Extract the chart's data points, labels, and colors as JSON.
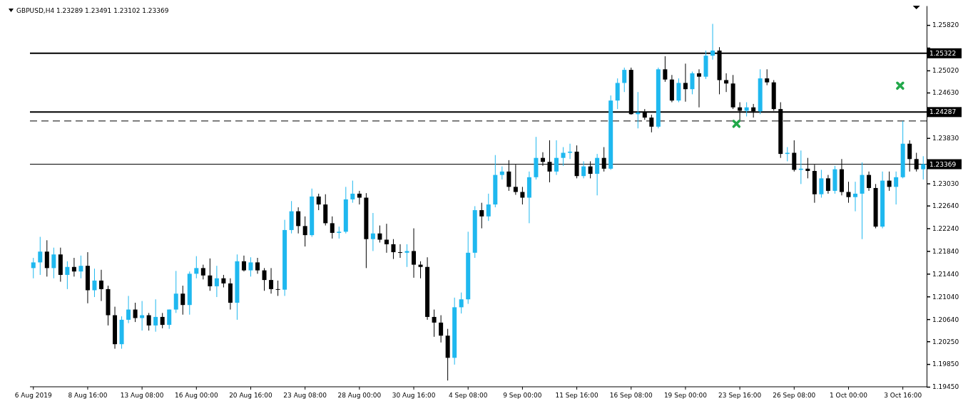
{
  "chart_data": {
    "type": "candlestick",
    "title": "GBPUSD,H4 1.23289 1.23491 1.23102 1.23369",
    "categories": [
      "6 Aug 2019",
      null,
      null,
      null,
      null,
      null,
      null,
      null,
      "8 Aug 16:00",
      null,
      null,
      null,
      null,
      null,
      null,
      null,
      "13 Aug 08:00",
      null,
      null,
      null,
      null,
      null,
      null,
      null,
      "16 Aug 00:00",
      null,
      null,
      null,
      null,
      null,
      null,
      null,
      "20 Aug 16:00",
      null,
      null,
      null,
      null,
      null,
      null,
      null,
      "23 Aug 08:00",
      null,
      null,
      null,
      null,
      null,
      null,
      null,
      "28 Aug 00:00",
      null,
      null,
      null,
      null,
      null,
      null,
      null,
      "30 Aug 16:00",
      null,
      null,
      null,
      null,
      null,
      null,
      null,
      "4 Sep 08:00",
      null,
      null,
      null,
      null,
      null,
      null,
      null,
      "9 Sep 00:00",
      null,
      null,
      null,
      null,
      null,
      null,
      null,
      "11 Sep 16:00",
      null,
      null,
      null,
      null,
      null,
      null,
      null,
      "16 Sep 08:00",
      null,
      null,
      null,
      null,
      null,
      null,
      null,
      "19 Sep 00:00",
      null,
      null,
      null,
      null,
      null,
      null,
      null,
      "23 Sep 16:00",
      null,
      null,
      null,
      null,
      null,
      null,
      null,
      "26 Sep 08:00",
      null,
      null,
      null,
      null,
      null,
      null,
      null,
      "1 Oct 00:00",
      null,
      null,
      null,
      null,
      null,
      null,
      null,
      "3 Oct 16:00",
      null,
      null,
      null
    ],
    "ohlc": [
      [
        1.2154,
        1.2172,
        1.2136,
        1.2164
      ],
      [
        1.2164,
        1.2209,
        1.2142,
        1.2183
      ],
      [
        1.2183,
        1.2203,
        1.2139,
        1.2154
      ],
      [
        1.2154,
        1.219,
        1.2136,
        1.2178
      ],
      [
        1.2178,
        1.219,
        1.213,
        1.2142
      ],
      [
        1.2142,
        1.2166,
        1.2117,
        1.2156
      ],
      [
        1.2156,
        1.2172,
        1.2139,
        1.2148
      ],
      [
        1.2148,
        1.2176,
        1.2136,
        1.2158
      ],
      [
        1.2158,
        1.2182,
        1.2092,
        1.2115
      ],
      [
        1.2115,
        1.2153,
        1.2103,
        1.2132
      ],
      [
        1.2132,
        1.2151,
        1.2096,
        1.2117
      ],
      [
        1.2117,
        1.2123,
        1.2053,
        1.2071
      ],
      [
        1.2071,
        1.2086,
        1.2012,
        1.202
      ],
      [
        1.202,
        1.2069,
        1.2012,
        1.2063
      ],
      [
        1.2063,
        1.2105,
        1.2057,
        1.2081
      ],
      [
        1.2081,
        1.2093,
        1.2059,
        1.2066
      ],
      [
        1.2066,
        1.2096,
        1.2044,
        1.2071
      ],
      [
        1.2071,
        1.2075,
        1.2044,
        1.2053
      ],
      [
        1.2053,
        1.2099,
        1.2042,
        1.2068
      ],
      [
        1.2068,
        1.2075,
        1.2048,
        1.2054
      ],
      [
        1.2054,
        1.2081,
        1.2047,
        1.2081
      ],
      [
        1.2081,
        1.2149,
        1.2075,
        1.2109
      ],
      [
        1.2109,
        1.2123,
        1.2072,
        1.2089
      ],
      [
        1.2089,
        1.2148,
        1.2072,
        1.2144
      ],
      [
        1.2144,
        1.2175,
        1.2136,
        1.2154
      ],
      [
        1.2154,
        1.216,
        1.2134,
        1.2141
      ],
      [
        1.2141,
        1.2171,
        1.2114,
        1.2122
      ],
      [
        1.2122,
        1.2158,
        1.2103,
        1.2136
      ],
      [
        1.2136,
        1.2142,
        1.212,
        1.2127
      ],
      [
        1.2127,
        1.2136,
        1.2081,
        1.2093
      ],
      [
        1.2093,
        1.2178,
        1.2063,
        1.2166
      ],
      [
        1.2166,
        1.2176,
        1.2148,
        1.215
      ],
      [
        1.215,
        1.2173,
        1.2139,
        1.2164
      ],
      [
        1.2164,
        1.2172,
        1.2144,
        1.215
      ],
      [
        1.215,
        1.2154,
        1.2114,
        1.2133
      ],
      [
        1.2133,
        1.2154,
        1.2109,
        1.2117
      ],
      [
        1.2117,
        1.2132,
        1.2105,
        1.2116
      ],
      [
        1.2116,
        1.2239,
        1.2105,
        1.2221
      ],
      [
        1.2221,
        1.2272,
        1.2215,
        1.2254
      ],
      [
        1.2254,
        1.2261,
        1.2215,
        1.2228
      ],
      [
        1.2228,
        1.2245,
        1.2192,
        1.2212
      ],
      [
        1.2212,
        1.2294,
        1.2209,
        1.228
      ],
      [
        1.228,
        1.2285,
        1.2256,
        1.2266
      ],
      [
        1.2266,
        1.2284,
        1.2229,
        1.2233
      ],
      [
        1.2233,
        1.2245,
        1.2206,
        1.2216
      ],
      [
        1.2216,
        1.2227,
        1.2206,
        1.2218
      ],
      [
        1.2218,
        1.2297,
        1.2215,
        1.2275
      ],
      [
        1.2275,
        1.2308,
        1.2269,
        1.2285
      ],
      [
        1.2285,
        1.229,
        1.2266,
        1.2278
      ],
      [
        1.2278,
        1.2286,
        1.2154,
        1.2205
      ],
      [
        1.2205,
        1.2251,
        1.2184,
        1.2215
      ],
      [
        1.2215,
        1.2229,
        1.2199,
        1.2204
      ],
      [
        1.2204,
        1.2232,
        1.2181,
        1.2196
      ],
      [
        1.2196,
        1.2205,
        1.217,
        1.2182
      ],
      [
        1.2182,
        1.2196,
        1.2172,
        1.2181
      ],
      [
        1.2181,
        1.2196,
        1.2156,
        1.2184
      ],
      [
        1.2184,
        1.2224,
        1.2137,
        1.216
      ],
      [
        1.216,
        1.2166,
        1.2136,
        1.2156
      ],
      [
        1.2156,
        1.2173,
        1.2063,
        1.2068
      ],
      [
        1.2068,
        1.2081,
        1.2033,
        1.2058
      ],
      [
        1.2058,
        1.2071,
        1.2023,
        1.2035
      ],
      [
        1.2035,
        1.2047,
        1.1956,
        1.1996
      ],
      [
        1.1996,
        1.2102,
        1.1984,
        1.2085
      ],
      [
        1.2085,
        1.2111,
        1.2074,
        1.2099
      ],
      [
        1.2099,
        1.2218,
        1.2091,
        1.2181
      ],
      [
        1.2181,
        1.2263,
        1.2172,
        1.2256
      ],
      [
        1.2256,
        1.2269,
        1.2224,
        1.2245
      ],
      [
        1.2245,
        1.2285,
        1.2237,
        1.2266
      ],
      [
        1.2266,
        1.2353,
        1.2261,
        1.2318
      ],
      [
        1.2318,
        1.2333,
        1.231,
        1.2324
      ],
      [
        1.2324,
        1.2344,
        1.229,
        1.2297
      ],
      [
        1.2297,
        1.2336,
        1.2283,
        1.2288
      ],
      [
        1.2288,
        1.2297,
        1.2266,
        1.2278
      ],
      [
        1.2278,
        1.2324,
        1.2233,
        1.2314
      ],
      [
        1.2314,
        1.2385,
        1.231,
        1.2348
      ],
      [
        1.2348,
        1.2358,
        1.2334,
        1.2341
      ],
      [
        1.2341,
        1.2379,
        1.2305,
        1.2324
      ],
      [
        1.2324,
        1.2379,
        1.2318,
        1.2348
      ],
      [
        1.2348,
        1.2367,
        1.2334,
        1.2357
      ],
      [
        1.2357,
        1.2373,
        1.2346,
        1.2359
      ],
      [
        1.2359,
        1.237,
        1.2312,
        1.2316
      ],
      [
        1.2316,
        1.2342,
        1.2312,
        1.2333
      ],
      [
        1.2333,
        1.2342,
        1.2312,
        1.232
      ],
      [
        1.232,
        1.2355,
        1.2282,
        1.2348
      ],
      [
        1.2348,
        1.2367,
        1.2324,
        1.2329
      ],
      [
        1.2329,
        1.2458,
        1.2327,
        1.2449
      ],
      [
        1.2449,
        1.2488,
        1.2434,
        1.248
      ],
      [
        1.248,
        1.2507,
        1.2464,
        1.2503
      ],
      [
        1.2503,
        1.2507,
        1.2424,
        1.2425
      ],
      [
        1.2425,
        1.2464,
        1.24,
        1.2428
      ],
      [
        1.2428,
        1.2434,
        1.2415,
        1.2419
      ],
      [
        1.2419,
        1.2424,
        1.2393,
        1.2403
      ],
      [
        1.2403,
        1.2507,
        1.24,
        1.2504
      ],
      [
        1.2504,
        1.2527,
        1.2482,
        1.2486
      ],
      [
        1.2486,
        1.2494,
        1.2446,
        1.2449
      ],
      [
        1.2449,
        1.2488,
        1.2446,
        1.248
      ],
      [
        1.248,
        1.2514,
        1.2447,
        1.2469
      ],
      [
        1.2469,
        1.25,
        1.246,
        1.2497
      ],
      [
        1.2497,
        1.2504,
        1.2437,
        1.2491
      ],
      [
        1.2491,
        1.2537,
        1.2487,
        1.2528
      ],
      [
        1.2528,
        1.2584,
        1.2521,
        1.2537
      ],
      [
        1.2537,
        1.2543,
        1.246,
        1.2485
      ],
      [
        1.2485,
        1.2497,
        1.2464,
        1.2479
      ],
      [
        1.2479,
        1.2494,
        1.2434,
        1.2437
      ],
      [
        1.2437,
        1.2446,
        1.2413,
        1.2431
      ],
      [
        1.2431,
        1.2446,
        1.2421,
        1.2437
      ],
      [
        1.2437,
        1.2443,
        1.2419,
        1.243
      ],
      [
        1.243,
        1.2504,
        1.2425,
        1.2488
      ],
      [
        1.2488,
        1.2504,
        1.2476,
        1.2481
      ],
      [
        1.2481,
        1.2485,
        1.2431,
        1.2434
      ],
      [
        1.2434,
        1.2446,
        1.2348,
        1.2355
      ],
      [
        1.2355,
        1.2367,
        1.2342,
        1.2357
      ],
      [
        1.2357,
        1.2379,
        1.2324,
        1.2327
      ],
      [
        1.2327,
        1.2361,
        1.2302,
        1.2329
      ],
      [
        1.2329,
        1.2348,
        1.2312,
        1.2325
      ],
      [
        1.2325,
        1.2336,
        1.2269,
        1.2284
      ],
      [
        1.2284,
        1.2327,
        1.2278,
        1.2312
      ],
      [
        1.2312,
        1.2318,
        1.2285,
        1.229
      ],
      [
        1.229,
        1.2334,
        1.2285,
        1.2328
      ],
      [
        1.2328,
        1.2346,
        1.2282,
        1.2288
      ],
      [
        1.2288,
        1.2306,
        1.2269,
        1.2279
      ],
      [
        1.2279,
        1.2306,
        1.2254,
        1.2285
      ],
      [
        1.2285,
        1.234,
        1.2205,
        1.2318
      ],
      [
        1.2318,
        1.2324,
        1.229,
        1.2295
      ],
      [
        1.2295,
        1.2302,
        1.2224,
        1.2227
      ],
      [
        1.2227,
        1.2324,
        1.2224,
        1.2308
      ],
      [
        1.2308,
        1.2324,
        1.229,
        1.2297
      ],
      [
        1.2297,
        1.2324,
        1.2266,
        1.2314
      ],
      [
        1.2314,
        1.2413,
        1.2312,
        1.2373
      ],
      [
        1.2373,
        1.2379,
        1.2324,
        1.2346
      ],
      [
        1.2346,
        1.2357,
        1.2324,
        1.2328
      ],
      [
        1.2328,
        1.2351,
        1.231,
        1.2337
      ]
    ],
    "colors": [
      "#1fb8ef",
      "#1fb8ef",
      "#000000",
      "#1fb8ef",
      "#000000",
      "#1fb8ef",
      "#000000",
      "#1fb8ef",
      "#000000",
      "#1fb8ef",
      "#000000",
      "#000000",
      "#000000",
      "#1fb8ef",
      "#1fb8ef",
      "#000000",
      "#1fb8ef",
      "#000000",
      "#1fb8ef",
      "#000000",
      "#1fb8ef",
      "#1fb8ef",
      "#000000",
      "#1fb8ef",
      "#1fb8ef",
      "#000000",
      "#000000",
      "#1fb8ef",
      "#000000",
      "#000000",
      "#1fb8ef",
      "#000000",
      "#1fb8ef",
      "#000000",
      "#000000",
      "#000000",
      "#000000",
      "#1fb8ef",
      "#1fb8ef",
      "#000000",
      "#000000",
      "#1fb8ef",
      "#000000",
      "#000000",
      "#000000",
      "#1fb8ef",
      "#1fb8ef",
      "#1fb8ef",
      "#000000",
      "#000000",
      "#1fb8ef",
      "#000000",
      "#000000",
      "#000000",
      "#000000",
      "#1fb8ef",
      "#000000",
      "#000000",
      "#000000",
      "#000000",
      "#000000",
      "#000000",
      "#1fb8ef",
      "#1fb8ef",
      "#1fb8ef",
      "#1fb8ef",
      "#000000",
      "#1fb8ef",
      "#1fb8ef",
      "#1fb8ef",
      "#000000",
      "#000000",
      "#000000",
      "#1fb8ef",
      "#1fb8ef",
      "#000000",
      "#000000",
      "#1fb8ef",
      "#1fb8ef",
      "#1fb8ef",
      "#000000",
      "#1fb8ef",
      "#000000",
      "#1fb8ef",
      "#000000",
      "#1fb8ef",
      "#1fb8ef",
      "#1fb8ef",
      "#000000",
      "#1fb8ef",
      "#000000",
      "#000000",
      "#1fb8ef",
      "#000000",
      "#000000",
      "#1fb8ef",
      "#000000",
      "#1fb8ef",
      "#000000",
      "#1fb8ef",
      "#1fb8ef",
      "#000000",
      "#000000",
      "#000000",
      "#000000",
      "#1fb8ef",
      "#000000",
      "#1fb8ef",
      "#000000",
      "#000000",
      "#000000",
      "#1fb8ef",
      "#000000",
      "#1fb8ef",
      "#000000",
      "#000000",
      "#1fb8ef",
      "#000000",
      "#1fb8ef",
      "#000000",
      "#000000",
      "#1fb8ef",
      "#1fb8ef",
      "#000000",
      "#000000",
      "#1fb8ef",
      "#000000",
      "#1fb8ef",
      "#1fb8ef",
      "#000000",
      "#000000",
      "#1fb8ef"
    ],
    "ylim": [
      1.1945,
      1.2616
    ],
    "yticks": [
      {
        "value": 1.2542,
        "label": null
      },
      {
        "value": 1.2423,
        "label": null
      },
      {
        "value": 1.2343,
        "label": null
      },
      {
        "value": 1.2582,
        "label": "1.25820"
      },
      {
        "value": 1.2502,
        "label": "1.25020"
      },
      {
        "value": 1.2463,
        "label": "1.24630"
      },
      {
        "value": 1.2383,
        "label": "1.23830"
      },
      {
        "value": 1.2303,
        "label": "1.23030"
      },
      {
        "value": 1.2264,
        "label": "1.22640"
      },
      {
        "value": 1.2224,
        "label": "1.22240"
      },
      {
        "value": 1.2184,
        "label": "1.21840"
      },
      {
        "value": 1.2144,
        "label": "1.21440"
      },
      {
        "value": 1.2104,
        "label": "1.21040"
      },
      {
        "value": 1.2064,
        "label": "1.20640"
      },
      {
        "value": 1.2025,
        "label": "1.20250"
      },
      {
        "value": 1.1985,
        "label": "1.19850"
      },
      {
        "value": 1.1945,
        "label": "1.19450"
      }
    ],
    "ref_lines": [
      {
        "axis": "y",
        "value": 1.25322,
        "label": "1.25322",
        "color": "#000000",
        "line_style": "solid"
      },
      {
        "axis": "y",
        "value": 1.24287,
        "label": "1.24287",
        "color": "#000000",
        "line_style": "solid"
      },
      {
        "axis": "y",
        "value": 1.23369,
        "label": "1.23369",
        "color": "#000000",
        "line_style": "solid"
      },
      {
        "axis": "y",
        "value": 1.2413,
        "color": "#000000",
        "line_style": "dashed"
      }
    ]
  }
}
